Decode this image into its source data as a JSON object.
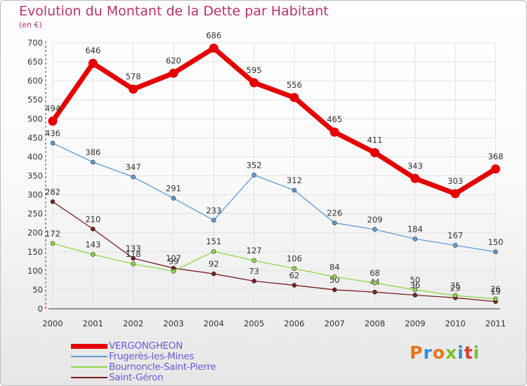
{
  "header": {
    "title": "Evolution du Montant de la Dette par Habitant",
    "unit": "(en €)"
  },
  "logo": {
    "text": "Proxiti",
    "letter_colors": [
      "#e8731a",
      "#2b8fd6",
      "#e8731a",
      "#7bbf2a",
      "#2b8fd6",
      "#d63a2a",
      "#7bbf2a"
    ]
  },
  "chart_data": {
    "type": "line",
    "title": "Evolution du Montant de la Dette par Habitant",
    "subtitle": "(en €)",
    "xlabel": "",
    "ylabel": "",
    "x": [
      "2000",
      "2001",
      "2002",
      "2003",
      "2004",
      "2005",
      "2006",
      "2007",
      "2008",
      "2009",
      "2010",
      "2011"
    ],
    "ylim": [
      0,
      700
    ],
    "yticks": [
      0,
      50,
      100,
      150,
      200,
      250,
      300,
      350,
      400,
      450,
      500,
      550,
      600,
      650,
      700
    ],
    "grid": true,
    "legend_position": "bottom-left",
    "series": [
      {
        "name": "VERGONGHEON",
        "color": "#e50000",
        "values": [
          494,
          646,
          578,
          620,
          686,
          595,
          556,
          465,
          411,
          343,
          303,
          368
        ],
        "labels": [
          "494",
          "646",
          "578",
          "620",
          "686",
          "595",
          "556",
          "465",
          "411",
          "343",
          "303",
          "368"
        ]
      },
      {
        "name": "Frugerès-les-Mines",
        "color": "#5e9bd5",
        "values": [
          436,
          386,
          347,
          291,
          233,
          352,
          312,
          226,
          209,
          184,
          167,
          150
        ],
        "labels": [
          "436",
          "386",
          "347",
          "291",
          "233",
          "352",
          "312",
          "226",
          "209",
          "184",
          "167",
          "150"
        ]
      },
      {
        "name": "Bournoncle-Saint-Pierre",
        "color": "#8fd64a",
        "values": [
          172,
          143,
          118,
          99,
          151,
          127,
          106,
          84,
          68,
          50,
          35,
          26
        ],
        "labels": [
          "172",
          "143",
          "118",
          "99",
          "151",
          "127",
          "106",
          "84",
          "68",
          "50",
          "35",
          "26"
        ]
      },
      {
        "name": "Saint-Géron",
        "color": "#7a1f1f",
        "values": [
          282,
          210,
          133,
          107,
          92,
          73,
          62,
          50,
          44,
          36,
          29,
          19
        ],
        "labels": [
          "282",
          "210",
          "133",
          "107",
          "92",
          "73",
          "62",
          "50",
          "44",
          "36",
          "29",
          "19"
        ]
      }
    ]
  }
}
